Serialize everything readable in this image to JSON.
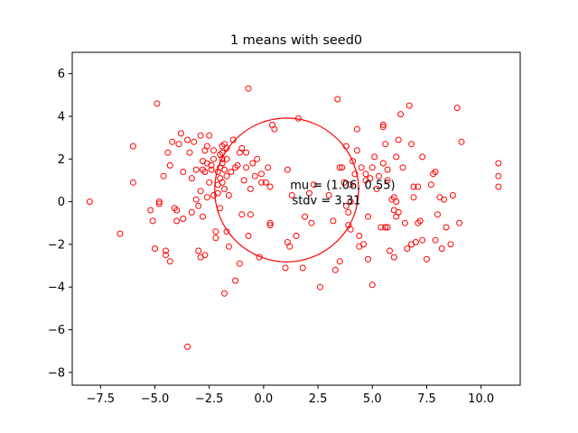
{
  "chart_data": {
    "type": "scatter",
    "title": "1 means with seed0",
    "xlabel": "",
    "ylabel": "",
    "xlim": [
      -8.8,
      11.8
    ],
    "ylim": [
      -8.6,
      7.0
    ],
    "xticks": [
      -7.5,
      -5.0,
      -2.5,
      0.0,
      2.5,
      5.0,
      7.5,
      10.0
    ],
    "xtick_labels": [
      "−7.5",
      "−5.0",
      "−2.5",
      "0.0",
      "2.5",
      "5.0",
      "7.5",
      "10.0"
    ],
    "yticks": [
      -8,
      -6,
      -4,
      -2,
      0,
      2,
      4,
      6
    ],
    "ytick_labels": [
      "−8",
      "−6",
      "−4",
      "−2",
      "0",
      "2",
      "4",
      "6"
    ],
    "grid": false,
    "marker_color": "#ff0000",
    "cluster": {
      "center": [
        1.06,
        0.55
      ],
      "radius": 3.31
    },
    "annotations": [
      "mu = (1.06, 0.55)",
      "stdv = 3.31"
    ],
    "points": [
      [
        -8.0,
        0.0
      ],
      [
        -6.6,
        -1.5
      ],
      [
        -6.0,
        2.6
      ],
      [
        -6.0,
        0.9
      ],
      [
        -5.2,
        -0.4
      ],
      [
        -5.1,
        -0.9
      ],
      [
        -5.0,
        -2.2
      ],
      [
        -4.9,
        4.6
      ],
      [
        -4.8,
        0.0
      ],
      [
        -4.8,
        -0.1
      ],
      [
        -4.6,
        1.2
      ],
      [
        -4.5,
        -2.3
      ],
      [
        -4.5,
        -2.5
      ],
      [
        -4.4,
        2.3
      ],
      [
        -4.3,
        -2.8
      ],
      [
        -4.3,
        1.7
      ],
      [
        -4.2,
        2.8
      ],
      [
        -4.1,
        -0.3
      ],
      [
        -4.0,
        -0.4
      ],
      [
        -4.0,
        -0.9
      ],
      [
        -3.9,
        2.7
      ],
      [
        -3.8,
        3.2
      ],
      [
        -3.7,
        1.4
      ],
      [
        -3.7,
        -0.8
      ],
      [
        -3.5,
        2.9
      ],
      [
        -3.5,
        -6.8
      ],
      [
        -3.4,
        2.3
      ],
      [
        -3.3,
        1.1
      ],
      [
        -3.3,
        -0.5
      ],
      [
        -3.2,
        2.8
      ],
      [
        -3.1,
        0.1
      ],
      [
        -3.1,
        1.5
      ],
      [
        -3.0,
        -0.2
      ],
      [
        -3.0,
        -2.3
      ],
      [
        -2.9,
        0.5
      ],
      [
        -2.9,
        3.1
      ],
      [
        -2.9,
        -2.6
      ],
      [
        -2.8,
        -0.7
      ],
      [
        -2.8,
        1.9
      ],
      [
        -2.8,
        1.5
      ],
      [
        -2.7,
        1.4
      ],
      [
        -2.7,
        2.4
      ],
      [
        -2.7,
        -2.5
      ],
      [
        -2.6,
        0.2
      ],
      [
        -2.6,
        1.8
      ],
      [
        -2.6,
        2.6
      ],
      [
        -2.5,
        0.9
      ],
      [
        -2.5,
        3.1
      ],
      [
        -2.4,
        1.7
      ],
      [
        -2.4,
        1.5
      ],
      [
        -2.3,
        0.3
      ],
      [
        -2.3,
        2.0
      ],
      [
        -2.3,
        2.4
      ],
      [
        -2.2,
        -1.4
      ],
      [
        -2.2,
        -1.7
      ],
      [
        -2.1,
        1.4
      ],
      [
        -2.1,
        0.8
      ],
      [
        -2.1,
        0.4
      ],
      [
        -2.0,
        2.2
      ],
      [
        -2.0,
        1.6
      ],
      [
        -2.0,
        1.1
      ],
      [
        -2.0,
        -0.3
      ],
      [
        -1.9,
        2.6
      ],
      [
        -1.9,
        2.3
      ],
      [
        -1.9,
        2.0
      ],
      [
        -1.9,
        1.8
      ],
      [
        -1.9,
        0.9
      ],
      [
        -1.8,
        1.5
      ],
      [
        -1.8,
        2.7
      ],
      [
        -1.8,
        0.6
      ],
      [
        -1.8,
        -4.3
      ],
      [
        -1.7,
        -1.4
      ],
      [
        -1.7,
        2.5
      ],
      [
        -1.7,
        2.0
      ],
      [
        -1.7,
        1.2
      ],
      [
        -1.6,
        0.3
      ],
      [
        -1.6,
        -2.1
      ],
      [
        -1.5,
        1.4
      ],
      [
        -1.4,
        2.9
      ],
      [
        -1.3,
        -3.7
      ],
      [
        -1.3,
        1.6
      ],
      [
        -1.2,
        1.7
      ],
      [
        -1.1,
        -2.9
      ],
      [
        -1.1,
        2.3
      ],
      [
        -1.0,
        -0.6
      ],
      [
        -1.0,
        2.5
      ],
      [
        -0.9,
        1.0
      ],
      [
        -0.8,
        1.6
      ],
      [
        -0.8,
        2.3
      ],
      [
        -0.7,
        -1.6
      ],
      [
        -0.7,
        5.3
      ],
      [
        -0.6,
        0.6
      ],
      [
        -0.6,
        -0.6
      ],
      [
        -0.5,
        1.8
      ],
      [
        -0.4,
        1.2
      ],
      [
        -0.3,
        2.0
      ],
      [
        -0.2,
        -2.6
      ],
      [
        -0.1,
        0.9
      ],
      [
        -0.1,
        1.3
      ],
      [
        0.1,
        0.9
      ],
      [
        0.2,
        1.6
      ],
      [
        0.3,
        -1.0
      ],
      [
        0.3,
        -1.1
      ],
      [
        0.3,
        0.7
      ],
      [
        0.4,
        3.6
      ],
      [
        0.5,
        3.4
      ],
      [
        1.0,
        -3.1
      ],
      [
        1.1,
        1.5
      ],
      [
        1.1,
        -1.9
      ],
      [
        1.2,
        -2.1
      ],
      [
        1.3,
        0.3
      ],
      [
        1.5,
        -1.6
      ],
      [
        1.6,
        3.9
      ],
      [
        1.8,
        -3.1
      ],
      [
        1.9,
        -0.7
      ],
      [
        2.1,
        0.4
      ],
      [
        2.2,
        -1.0
      ],
      [
        2.3,
        0.8
      ],
      [
        2.6,
        -4.0
      ],
      [
        3.0,
        0.3
      ],
      [
        3.2,
        -0.9
      ],
      [
        3.3,
        -3.2
      ],
      [
        3.4,
        4.8
      ],
      [
        3.5,
        -2.8
      ],
      [
        3.5,
        1.6
      ],
      [
        3.6,
        1.6
      ],
      [
        3.7,
        0.9
      ],
      [
        3.8,
        2.6
      ],
      [
        3.8,
        -0.2
      ],
      [
        3.9,
        -0.5
      ],
      [
        3.9,
        -1.1
      ],
      [
        4.0,
        -1.3
      ],
      [
        4.0,
        0.8
      ],
      [
        4.0,
        0.0
      ],
      [
        4.1,
        1.9
      ],
      [
        4.2,
        1.3
      ],
      [
        4.3,
        2.4
      ],
      [
        4.3,
        3.4
      ],
      [
        4.4,
        -2.1
      ],
      [
        4.4,
        -1.6
      ],
      [
        4.5,
        1.6
      ],
      [
        4.6,
        -2.0
      ],
      [
        4.7,
        1.3
      ],
      [
        4.7,
        1.0
      ],
      [
        4.8,
        -2.7
      ],
      [
        4.8,
        -0.7
      ],
      [
        4.9,
        1.1
      ],
      [
        5.0,
        -3.9
      ],
      [
        5.0,
        1.6
      ],
      [
        5.1,
        2.1
      ],
      [
        5.2,
        0.6
      ],
      [
        5.3,
        1.2
      ],
      [
        5.4,
        -1.2
      ],
      [
        5.5,
        3.6
      ],
      [
        5.5,
        1.8
      ],
      [
        5.5,
        3.5
      ],
      [
        5.6,
        2.7
      ],
      [
        5.6,
        -1.2
      ],
      [
        5.7,
        1.0
      ],
      [
        5.7,
        1.5
      ],
      [
        5.7,
        -1.2
      ],
      [
        5.8,
        -2.3
      ],
      [
        5.9,
        0.1
      ],
      [
        6.0,
        -2.6
      ],
      [
        6.0,
        0.2
      ],
      [
        6.0,
        -0.4
      ],
      [
        6.1,
        0.0
      ],
      [
        6.1,
        -0.7
      ],
      [
        6.1,
        2.1
      ],
      [
        6.2,
        2.9
      ],
      [
        6.2,
        -0.5
      ],
      [
        6.3,
        4.1
      ],
      [
        6.4,
        1.6
      ],
      [
        6.5,
        -1.0
      ],
      [
        6.6,
        -2.2
      ],
      [
        6.7,
        4.5
      ],
      [
        6.8,
        2.7
      ],
      [
        6.8,
        -2.0
      ],
      [
        6.9,
        0.7
      ],
      [
        6.9,
        0.2
      ],
      [
        7.0,
        -1.9
      ],
      [
        7.1,
        0.7
      ],
      [
        7.1,
        -1.0
      ],
      [
        7.2,
        -0.9
      ],
      [
        7.3,
        2.1
      ],
      [
        7.3,
        -1.8
      ],
      [
        7.5,
        -2.7
      ],
      [
        7.7,
        0.8
      ],
      [
        7.8,
        1.3
      ],
      [
        7.9,
        1.4
      ],
      [
        7.9,
        -1.8
      ],
      [
        8.0,
        -0.6
      ],
      [
        8.1,
        0.2
      ],
      [
        8.2,
        -2.2
      ],
      [
        8.3,
        0.1
      ],
      [
        8.4,
        -1.2
      ],
      [
        8.6,
        -2.0
      ],
      [
        8.7,
        0.3
      ],
      [
        8.9,
        4.4
      ],
      [
        9.0,
        -1.0
      ],
      [
        9.1,
        2.8
      ],
      [
        10.8,
        1.8
      ],
      [
        10.8,
        1.2
      ],
      [
        10.8,
        0.7
      ]
    ]
  }
}
